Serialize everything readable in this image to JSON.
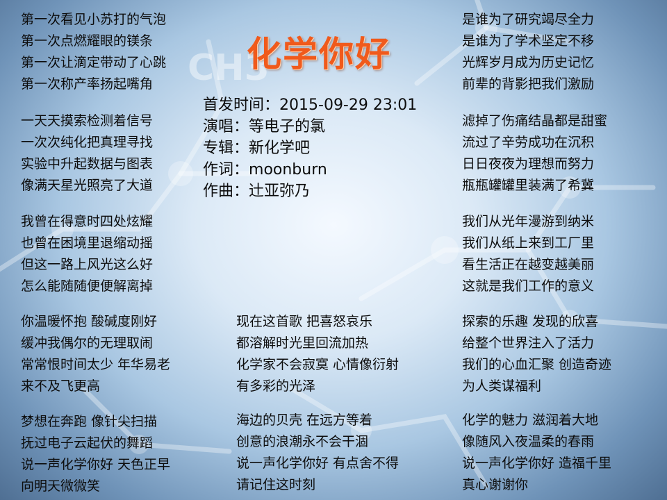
{
  "title": "化学你好",
  "info": [
    {
      "label": "首发时间：",
      "value": "2015-09-29 23:01"
    },
    {
      "label": "演唱：",
      "value": "等电子的氯"
    },
    {
      "label": "专辑：",
      "value": "新化学吧"
    },
    {
      "label": "作词：",
      "value": "moonburn"
    },
    {
      "label": "作曲：",
      "value": "辻亚弥乃"
    }
  ],
  "background_watermark": "CH3",
  "columns": {
    "left": [
      [
        "第一次看见小苏打的气泡",
        "第一次点燃耀眼的镁条",
        "第一次让滴定带动了心跳",
        "第一次称产率扬起嘴角"
      ],
      [
        "一天天摸索检测着信号",
        "一次次纯化把真理寻找",
        "实验中升起数据与图表",
        "像满天星光照亮了大道"
      ],
      [
        "我曾在得意时四处炫耀",
        "也曾在困境里退缩动摇",
        "但这一路上风光这么好",
        "怎么能随随便便解离掉"
      ],
      [
        "你温暖怀抱 酸碱度刚好",
        "缓冲我偶尔的无理取闹",
        "常常恨时间太少 年华易老",
        "来不及飞更高"
      ],
      [
        "梦想在奔跑 像针尖扫描",
        "抚过电子云起伏的舞蹈",
        "说一声化学你好 天色正早",
        "向明天微微笑"
      ]
    ],
    "middle": [
      [
        "现在这首歌 把喜怒哀乐",
        "都溶解时光里回流加热",
        "化学家不会寂寞 心情像衍射",
        "有多彩的光泽"
      ],
      [
        "海边的贝壳 在远方等着",
        "创意的浪潮永不会干涸",
        "说一声化学你好 有点舍不得",
        "请记住这时刻"
      ]
    ],
    "right": [
      [
        "是谁为了研究竭尽全力",
        "是谁为了学术坚定不移",
        "光辉岁月成为历史记忆",
        "前辈的背影把我们激励"
      ],
      [
        "滤掉了伤痛结晶都是甜蜜",
        "流过了辛劳成功在沉积",
        "日日夜夜为理想而努力",
        "瓶瓶罐罐里装满了希冀"
      ],
      [
        "我们从光年漫游到纳米",
        "我们从纸上来到工厂里",
        "看生活正在越变越美丽",
        "这就是我们工作的意义"
      ],
      [
        "探索的乐趣 发现的欣喜",
        "给整个世界注入了活力",
        "我们的心血汇聚 创造奇迹",
        "为人类谋福利"
      ],
      [
        "化学的魅力 滋润着大地",
        "像随风入夜温柔的春雨",
        "说一声化学你好 造福千里",
        "真心谢谢你"
      ]
    ]
  }
}
